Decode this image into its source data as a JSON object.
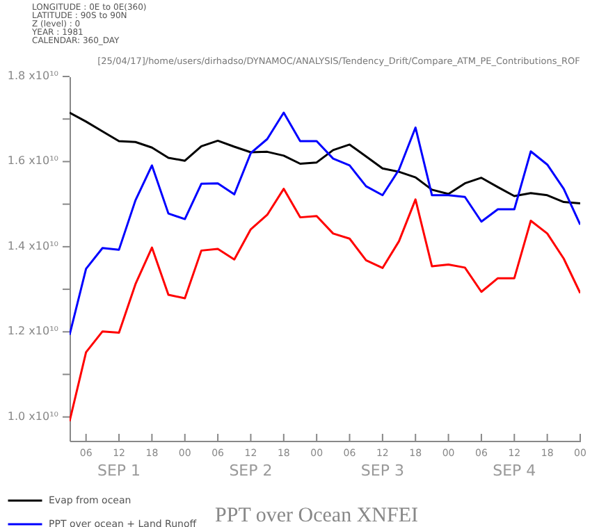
{
  "chart_data": {
    "type": "line",
    "title": "PPT over Ocean XNFEI",
    "subtitle": "[25/04/17]/home/users/dirhadso/DYNAMOC/ANALYSIS/Tendency_Drift/Compare_ATM_PE_Contributions_ROF",
    "annotations": [
      "LONGITUDE : 0E to 0E(360)",
      "LATITUDE : 90S to 90N",
      "Z (level) : 0",
      "YEAR : 1981",
      "CALENDAR: 360_DAY",
      "SEP  1",
      "SEP  2",
      "SEP  3",
      "SEP  4"
    ],
    "x": [
      3,
      6,
      9,
      12,
      15,
      18,
      21,
      24,
      27,
      30,
      33,
      36,
      39,
      42,
      45,
      48,
      51,
      54,
      57,
      60,
      63,
      66,
      69,
      72,
      75,
      78,
      81,
      84,
      87,
      90,
      93,
      96
    ],
    "series": [
      {
        "name": "Evap from ocean",
        "color": "#000000",
        "values": [
          17150000000.0,
          16940000000.0,
          16710000000.0,
          16480000000.0,
          16460000000.0,
          16330000000.0,
          16090000000.0,
          16020000000.0,
          16360000000.0,
          16490000000.0,
          16350000000.0,
          16220000000.0,
          16230000000.0,
          16140000000.0,
          15950000000.0,
          15980000000.0,
          16270000000.0,
          16400000000.0,
          16120000000.0,
          15840000000.0,
          15760000000.0,
          15630000000.0,
          15340000000.0,
          15240000000.0,
          15490000000.0,
          15620000000.0,
          15400000000.0,
          15190000000.0,
          15260000000.0,
          15210000000.0,
          15050000000.0,
          15020000000.0
        ]
      },
      {
        "name": "PPT over ocean + Land Runoff",
        "color": "#0000ff",
        "values": [
          11930000000.0,
          13480000000.0,
          13970000000.0,
          13930000000.0,
          15090000000.0,
          15910000000.0,
          14780000000.0,
          14650000000.0,
          15480000000.0,
          15490000000.0,
          15230000000.0,
          16200000000.0,
          16530000000.0,
          17150000000.0,
          16480000000.0,
          16480000000.0,
          16070000000.0,
          15910000000.0,
          15420000000.0,
          15210000000.0,
          15810000000.0,
          16800000000.0,
          15210000000.0,
          15210000000.0,
          15170000000.0,
          14590000000.0,
          14880000000.0,
          14880000000.0,
          16240000000.0,
          15930000000.0,
          15360000000.0,
          14520000000.0
        ]
      },
      {
        "color": "#ff0000",
        "values": [
          9900000000.0,
          11520000000.0,
          12010000000.0,
          11980000000.0,
          13120000000.0,
          13980000000.0,
          12870000000.0,
          12790000000.0,
          13910000000.0,
          13950000000.0,
          13700000000.0,
          14410000000.0,
          14750000000.0,
          15360000000.0,
          14690000000.0,
          14720000000.0,
          14310000000.0,
          14190000000.0,
          13680000000.0,
          13500000000.0,
          14130000000.0,
          15110000000.0,
          13540000000.0,
          13580000000.0,
          13510000000.0,
          12940000000.0,
          13260000000.0,
          13260000000.0,
          14610000000.0,
          14310000000.0,
          13720000000.0,
          12910000000.0
        ]
      }
    ],
    "xlim": [
      3,
      96
    ],
    "xticks": [
      {
        "value": 6,
        "label": "06"
      },
      {
        "value": 12,
        "label": "12"
      },
      {
        "value": 18,
        "label": "18"
      },
      {
        "value": 24,
        "label": "00"
      },
      {
        "value": 30,
        "label": "06"
      },
      {
        "value": 36,
        "label": "12"
      },
      {
        "value": 42,
        "label": "18"
      },
      {
        "value": 48,
        "label": "00"
      },
      {
        "value": 54,
        "label": "06"
      },
      {
        "value": 60,
        "label": "12"
      },
      {
        "value": 66,
        "label": "18"
      },
      {
        "value": 72,
        "label": "00"
      },
      {
        "value": 78,
        "label": "06"
      },
      {
        "value": 84,
        "label": "12"
      },
      {
        "value": 90,
        "label": "18"
      },
      {
        "value": 96,
        "label": "00"
      }
    ],
    "ylim": [
      9440000000.0,
      18000000000.0
    ],
    "yticks": [
      {
        "value": 10000000000.0,
        "label": "1.0 x10¹⁰"
      },
      {
        "value": 11000000000.0,
        "label": null
      },
      {
        "value": 12000000000.0,
        "label": "1.2 x10¹⁰"
      },
      {
        "value": 13000000000.0,
        "label": null
      },
      {
        "value": 14000000000.0,
        "label": "1.4 x10¹⁰"
      },
      {
        "value": 15000000000.0,
        "label": null
      },
      {
        "value": 16000000000.0,
        "label": "1.6 x10¹⁰"
      },
      {
        "value": 17000000000.0,
        "label": null
      },
      {
        "value": 18000000000.0,
        "label": "1.8 x10¹⁰"
      }
    ],
    "grid": false,
    "legend": "bottom left",
    "marker": "none",
    "line_style": "solid"
  }
}
